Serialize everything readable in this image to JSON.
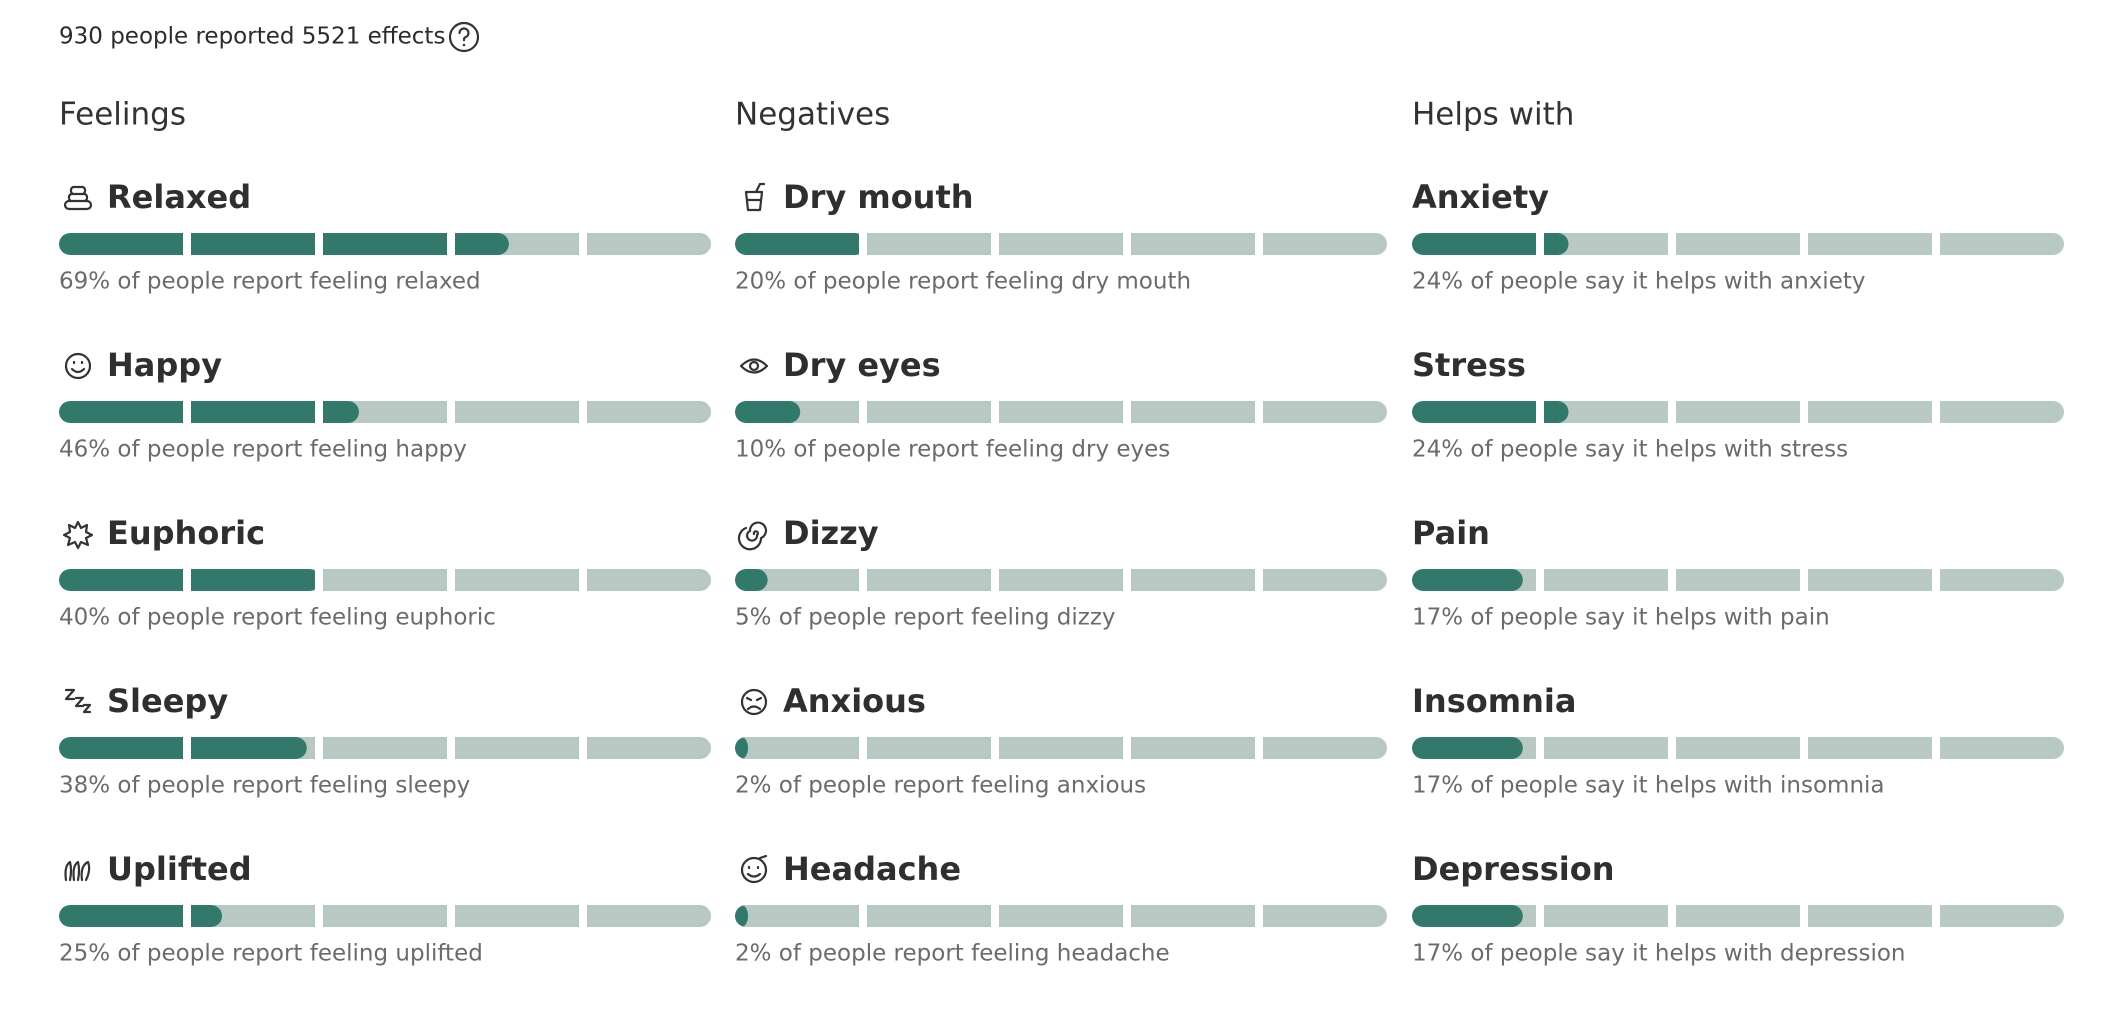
{
  "header": {
    "summary": "930 people reported 5521 effects"
  },
  "columns": [
    {
      "title": "Feelings",
      "items": [
        {
          "label": "Relaxed",
          "value": 69,
          "description": "69% of people report feeling relaxed"
        },
        {
          "label": "Happy",
          "value": 46,
          "description": "46% of people report feeling happy"
        },
        {
          "label": "Euphoric",
          "value": 40,
          "description": "40% of people report feeling euphoric"
        },
        {
          "label": "Sleepy",
          "value": 38,
          "description": "38% of people report feeling sleepy"
        },
        {
          "label": "Uplifted",
          "value": 25,
          "description": "25% of people report feeling uplifted"
        }
      ]
    },
    {
      "title": "Negatives",
      "items": [
        {
          "label": "Dry mouth",
          "value": 20,
          "description": "20% of people report feeling dry mouth"
        },
        {
          "label": "Dry eyes",
          "value": 10,
          "description": "10% of people report feeling dry eyes"
        },
        {
          "label": "Dizzy",
          "value": 5,
          "description": "5% of people report feeling dizzy"
        },
        {
          "label": "Anxious",
          "value": 2,
          "description": "2% of people report feeling anxious"
        },
        {
          "label": "Headache",
          "value": 2,
          "description": "2% of people report feeling headache"
        }
      ]
    },
    {
      "title": "Helps with",
      "items": [
        {
          "label": "Anxiety",
          "value": 24,
          "description": "24% of people say it helps with anxiety"
        },
        {
          "label": "Stress",
          "value": 24,
          "description": "24% of people say it helps with stress"
        },
        {
          "label": "Pain",
          "value": 17,
          "description": "17% of people say it helps with pain"
        },
        {
          "label": "Insomnia",
          "value": 17,
          "description": "17% of people say it helps with insomnia"
        },
        {
          "label": "Depression",
          "value": 17,
          "description": "17% of people say it helps with depression"
        }
      ]
    }
  ]
}
